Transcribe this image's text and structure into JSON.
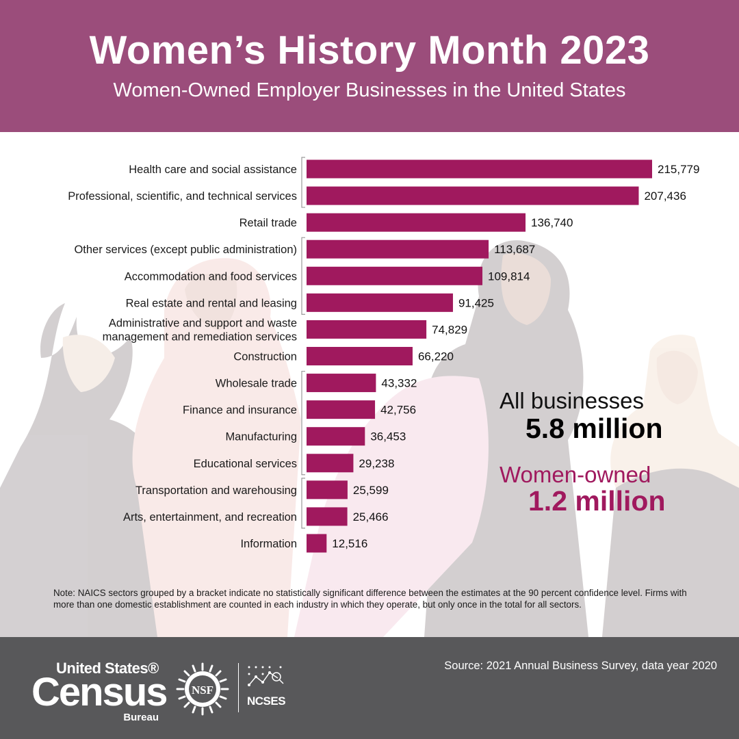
{
  "header": {
    "title": "Women’s History Month 2023",
    "subtitle": "Women-Owned Employer Businesses in the United States"
  },
  "chart_data": {
    "type": "bar",
    "orientation": "horizontal",
    "categories": [
      "Health care and social assistance",
      "Professional, scientific, and technical services",
      "Retail trade",
      "Other services (except public administration)",
      "Accommodation and food services",
      "Real estate and rental and leasing",
      "Administrative and support and waste management and remediation services",
      "Construction",
      "Wholesale trade",
      "Finance and insurance",
      "Manufacturing",
      "Educational services",
      "Transportation and warehousing",
      "Arts, entertainment, and recreation",
      "Information"
    ],
    "label_lines": [
      [
        "Health care and social assistance"
      ],
      [
        "Professional, scientific, and technical services"
      ],
      [
        "Retail trade"
      ],
      [
        "Other services (except public administration)"
      ],
      [
        "Accommodation and food services"
      ],
      [
        "Real estate and rental and leasing"
      ],
      [
        "Administrative and support and waste",
        "management and remediation services"
      ],
      [
        "Construction"
      ],
      [
        "Wholesale trade"
      ],
      [
        "Finance and insurance"
      ],
      [
        "Manufacturing"
      ],
      [
        "Educational services"
      ],
      [
        "Transportation and warehousing"
      ],
      [
        "Arts, entertainment, and recreation"
      ],
      [
        "Information"
      ]
    ],
    "values": [
      215779,
      207436,
      136740,
      113687,
      109814,
      91425,
      74829,
      66220,
      43332,
      42756,
      36453,
      29238,
      25599,
      25466,
      12516
    ],
    "value_labels": [
      "215,779",
      "207,436",
      "136,740",
      "113,687",
      "109,814",
      "91,425",
      "74,829",
      "66,220",
      "43,332",
      "42,756",
      "36,453",
      "29,238",
      "25,599",
      "25,466",
      "12,516"
    ],
    "brackets": [
      [
        0,
        1
      ],
      [
        3,
        5
      ],
      [
        8,
        11
      ],
      [
        12,
        13
      ]
    ],
    "bar_color": "#a0195e",
    "xlim": [
      0,
      215779
    ],
    "grid": false,
    "legend": "none"
  },
  "stats": {
    "all_label": "All businesses",
    "all_value": "5.8 million",
    "women_label": "Women-owned",
    "women_value": "1.2 million",
    "accent_color": "#a0195e"
  },
  "note": "Note: NAICS sectors grouped by a bracket indicate no statistically significant difference between the estimates at the 90 percent confidence level. Firms with more than one domestic establishment are counted in each industry in which they operate, but only once in the total for all sectors.",
  "footer": {
    "source": "Source: 2021 Annual Business Survey, data year 2020",
    "census_top": "United States®",
    "census_main": "Census",
    "census_bureau": "Bureau",
    "nsf": "NSF",
    "ncses": "NCSES"
  },
  "colors": {
    "header_bg": "#9b4d7b",
    "footer_bg": "#58585a",
    "bar": "#a0195e"
  }
}
